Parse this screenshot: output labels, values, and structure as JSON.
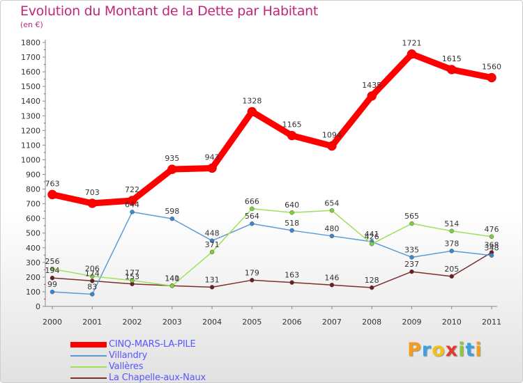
{
  "title": "Evolution du Montant de la Dette par Habitant",
  "subtitle": "(en €)",
  "logo": {
    "text": "Proxiti",
    "letters": [
      {
        "ch": "P",
        "color": "#f39c1e"
      },
      {
        "ch": "r",
        "color": "#3aa0e0"
      },
      {
        "ch": "o",
        "color": "#f2c21a"
      },
      {
        "ch": "x",
        "color": "#e23b2e"
      },
      {
        "ch": "i",
        "color": "#8cc63f"
      },
      {
        "ch": "t",
        "color": "#3aa0e0"
      },
      {
        "ch": "i",
        "color": "#f39c1e"
      }
    ]
  },
  "chart_data": {
    "type": "line",
    "x": [
      "2000",
      "2001",
      "2002",
      "2003",
      "2004",
      "2005",
      "2006",
      "2007",
      "2008",
      "2009",
      "2010",
      "2011"
    ],
    "ylim": [
      0,
      1800
    ],
    "yticks": [
      0,
      100,
      200,
      300,
      400,
      500,
      600,
      700,
      800,
      900,
      1000,
      1100,
      1200,
      1300,
      1400,
      1500,
      1600,
      1700,
      1800
    ],
    "grid": false,
    "legend_position": "bottom-left",
    "series": [
      {
        "name": "CINQ-MARS-LA-PILE",
        "color": "#ff0000",
        "marker": "#ff0000",
        "values": [
          763,
          703,
          722,
          935,
          943,
          1328,
          1165,
          1094,
          1435,
          1721,
          1615,
          1560
        ],
        "labels": [
          "763",
          "703",
          "722",
          "935",
          "943",
          "1328",
          "1165",
          "1094",
          "1435",
          "1721",
          "1615",
          "1560"
        ]
      },
      {
        "name": "Villandry",
        "color": "#5b9bd5",
        "marker": "#3b86d0",
        "values": [
          99,
          83,
          644,
          598,
          448,
          564,
          518,
          480,
          441,
          335,
          378,
          348
        ],
        "labels": [
          "99",
          "83",
          "644",
          "598",
          "448",
          "564",
          "518",
          "480",
          "441",
          "335",
          "378",
          "348"
        ]
      },
      {
        "name": "Vallères",
        "color": "#9ee05a",
        "marker": "#7cd03a",
        "values": [
          256,
          206,
          177,
          140,
          371,
          666,
          640,
          654,
          426,
          565,
          514,
          476
        ],
        "labels": [
          "256",
          "206",
          "177",
          "140",
          "371",
          "666",
          "640",
          "654",
          "426",
          "565",
          "514",
          "476"
        ]
      },
      {
        "name": "La Chapelle-aux-Naux",
        "color": "#7a2e2e",
        "marker": "#6a1f1f",
        "values": [
          194,
          174,
          153,
          141,
          131,
          179,
          163,
          146,
          128,
          237,
          205,
          368
        ],
        "labels": [
          "194",
          "174",
          "153",
          "141",
          "131",
          "179",
          "163",
          "146",
          "128",
          "237",
          "205",
          "368"
        ]
      }
    ]
  }
}
